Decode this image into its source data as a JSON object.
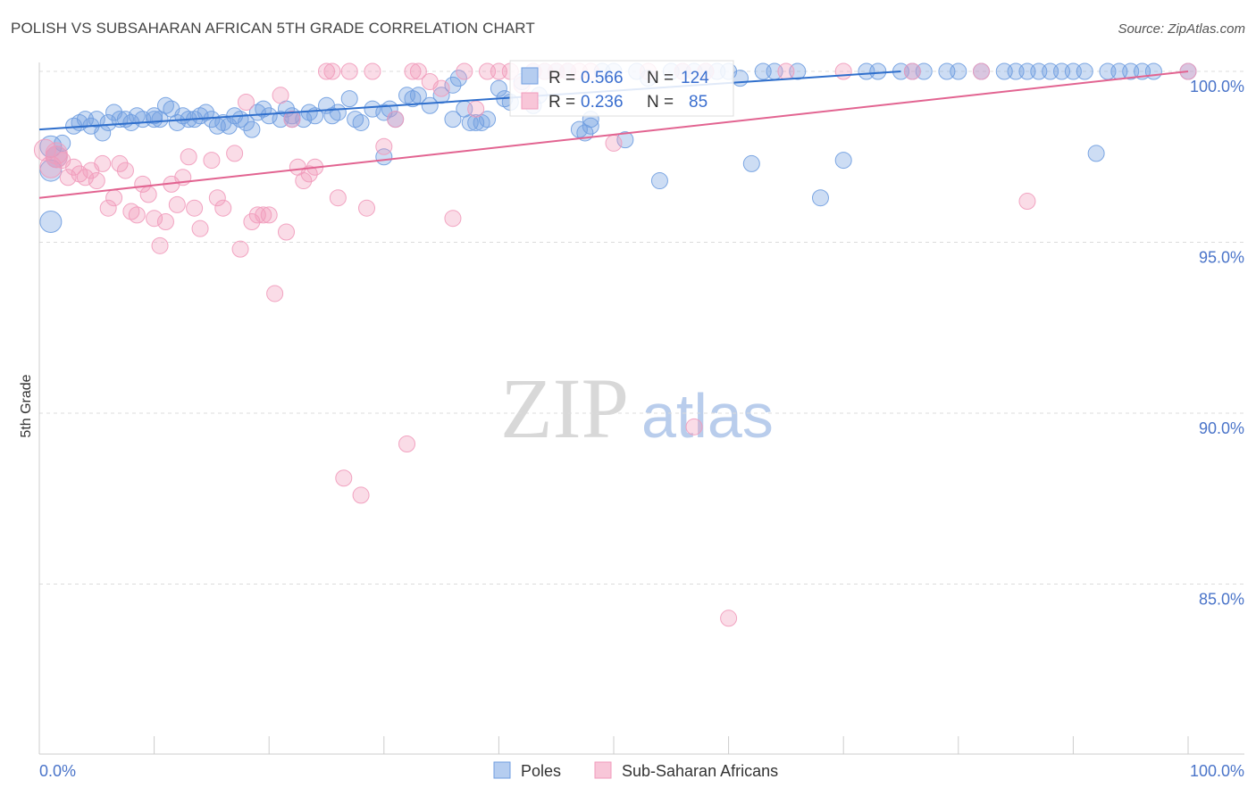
{
  "header": {
    "title": "POLISH VS SUBSAHARAN AFRICAN 5TH GRADE CORRELATION CHART",
    "source": "Source: ZipAtlas.com"
  },
  "watermark": {
    "zip": "ZIP",
    "atlas": "atlas"
  },
  "chart_data": {
    "type": "scatter",
    "title": "POLISH VS SUBSAHARAN AFRICAN 5TH GRADE CORRELATION CHART",
    "xlabel": "",
    "ylabel": "5th Grade",
    "xlim": [
      0,
      100
    ],
    "ylim": [
      80.5,
      100.8
    ],
    "x_tick_labels": [
      "0.0%",
      "100.0%"
    ],
    "y_ticks": [
      100,
      95,
      90,
      85
    ],
    "y_tick_labels": [
      "100.0%",
      "95.0%",
      "90.0%",
      "85.0%"
    ],
    "grid": true,
    "legend_position": "bottom",
    "series": [
      {
        "name": "Poles",
        "color": "#6f9de0",
        "line_color": "#2f6fcc",
        "R": "0.566",
        "N": "124",
        "trend": [
          [
            0,
            98.3
          ],
          [
            75,
            100.0
          ]
        ],
        "points": [
          [
            1,
            97.8
          ],
          [
            1.5,
            97.5
          ],
          [
            2,
            97.9
          ],
          [
            3,
            98.4
          ],
          [
            3.5,
            98.5
          ],
          [
            4,
            98.6
          ],
          [
            4.5,
            98.4
          ],
          [
            5,
            98.6
          ],
          [
            5.5,
            98.2
          ],
          [
            6,
            98.5
          ],
          [
            6.5,
            98.8
          ],
          [
            7,
            98.6
          ],
          [
            7.5,
            98.6
          ],
          [
            8,
            98.5
          ],
          [
            8.5,
            98.7
          ],
          [
            9,
            98.6
          ],
          [
            10,
            98.7
          ],
          [
            10.5,
            98.6
          ],
          [
            11,
            99.0
          ],
          [
            11.5,
            98.9
          ],
          [
            12,
            98.5
          ],
          [
            12.5,
            98.7
          ],
          [
            13,
            98.6
          ],
          [
            13.5,
            98.6
          ],
          [
            14,
            98.7
          ],
          [
            14.5,
            98.8
          ],
          [
            15,
            98.6
          ],
          [
            15.5,
            98.4
          ],
          [
            16,
            98.5
          ],
          [
            16.5,
            98.4
          ],
          [
            17,
            98.7
          ],
          [
            17.5,
            98.6
          ],
          [
            18,
            98.5
          ],
          [
            18.5,
            98.3
          ],
          [
            19,
            98.8
          ],
          [
            19.5,
            98.9
          ],
          [
            20,
            98.7
          ],
          [
            21,
            98.6
          ],
          [
            21.5,
            98.9
          ],
          [
            22,
            98.7
          ],
          [
            23,
            98.6
          ],
          [
            23.5,
            98.8
          ],
          [
            24,
            98.7
          ],
          [
            25,
            99.0
          ],
          [
            25.5,
            98.7
          ],
          [
            26,
            98.8
          ],
          [
            27,
            99.2
          ],
          [
            27.5,
            98.6
          ],
          [
            28,
            98.5
          ],
          [
            29,
            98.9
          ],
          [
            30,
            98.8
          ],
          [
            30.5,
            98.9
          ],
          [
            31,
            98.6
          ],
          [
            32,
            99.3
          ],
          [
            32.5,
            99.2
          ],
          [
            33,
            99.3
          ],
          [
            34,
            99.0
          ],
          [
            35,
            99.3
          ],
          [
            36,
            98.6
          ],
          [
            36.5,
            99.8
          ],
          [
            37,
            98.9
          ],
          [
            38,
            98.5
          ],
          [
            38.5,
            98.5
          ],
          [
            39,
            98.6
          ],
          [
            40,
            99.5
          ],
          [
            40.5,
            99.2
          ],
          [
            41,
            99.1
          ],
          [
            42,
            99.7
          ],
          [
            43,
            100.0
          ],
          [
            43.5,
            99.3
          ],
          [
            44,
            100.0
          ],
          [
            45,
            100.0
          ],
          [
            46,
            100.0
          ],
          [
            47,
            98.3
          ],
          [
            47.5,
            98.2
          ],
          [
            48,
            98.4
          ],
          [
            49,
            100.0
          ],
          [
            50,
            100.0
          ],
          [
            51,
            98.0
          ],
          [
            52,
            100.0
          ],
          [
            53,
            99.8
          ],
          [
            54,
            96.8
          ],
          [
            55,
            100.0
          ],
          [
            57,
            100.0
          ],
          [
            58,
            100.0
          ],
          [
            60,
            100.0
          ],
          [
            62,
            97.3
          ],
          [
            63,
            100.0
          ],
          [
            66,
            100.0
          ],
          [
            68,
            96.3
          ],
          [
            70,
            97.4
          ],
          [
            72,
            100.0
          ],
          [
            75,
            100.0
          ],
          [
            77,
            100.0
          ],
          [
            79,
            100.0
          ],
          [
            80,
            100.0
          ],
          [
            82,
            100.0
          ],
          [
            84,
            100.0
          ],
          [
            86,
            100.0
          ],
          [
            88,
            100.0
          ],
          [
            90,
            100.0
          ],
          [
            94,
            100.0
          ],
          [
            95,
            100.0
          ],
          [
            100,
            100.0
          ],
          [
            92,
            97.6
          ],
          [
            1,
            95.6
          ],
          [
            1,
            97.1
          ],
          [
            30,
            97.5
          ],
          [
            10,
            98.6
          ],
          [
            22,
            98.6
          ],
          [
            36,
            99.6
          ],
          [
            37.5,
            98.5
          ],
          [
            43,
            99.0
          ],
          [
            48,
            98.6
          ],
          [
            56,
            100.0
          ],
          [
            59,
            100.0
          ],
          [
            61,
            99.8
          ],
          [
            64,
            100.0
          ],
          [
            73,
            100.0
          ],
          [
            76,
            100.0
          ],
          [
            85,
            100.0
          ],
          [
            87,
            100.0
          ],
          [
            89,
            100.0
          ],
          [
            91,
            100.0
          ],
          [
            93,
            100.0
          ],
          [
            96,
            100.0
          ],
          [
            97,
            100.0
          ]
        ]
      },
      {
        "name": "Sub-Saharan Africans",
        "color": "#f19bbb",
        "line_color": "#e26491",
        "R": "0.236",
        "N": "85",
        "trend": [
          [
            0,
            96.3
          ],
          [
            100,
            100.0
          ]
        ],
        "points": [
          [
            0.5,
            97.7
          ],
          [
            1,
            97.2
          ],
          [
            1.5,
            97.6
          ],
          [
            2,
            97.4
          ],
          [
            2.5,
            96.9
          ],
          [
            3,
            97.2
          ],
          [
            3.5,
            97.0
          ],
          [
            4,
            96.9
          ],
          [
            4.5,
            97.1
          ],
          [
            5,
            96.8
          ],
          [
            5.5,
            97.3
          ],
          [
            6,
            96.0
          ],
          [
            6.5,
            96.3
          ],
          [
            7,
            97.3
          ],
          [
            7.5,
            97.1
          ],
          [
            8,
            95.9
          ],
          [
            8.5,
            95.8
          ],
          [
            9,
            96.7
          ],
          [
            9.5,
            96.4
          ],
          [
            10,
            95.7
          ],
          [
            10.5,
            94.9
          ],
          [
            11,
            95.6
          ],
          [
            11.5,
            96.7
          ],
          [
            12,
            96.1
          ],
          [
            12.5,
            96.9
          ],
          [
            13,
            97.5
          ],
          [
            13.5,
            96.0
          ],
          [
            14,
            95.4
          ],
          [
            15,
            97.4
          ],
          [
            15.5,
            96.3
          ],
          [
            16,
            96.0
          ],
          [
            17,
            97.6
          ],
          [
            17.5,
            94.8
          ],
          [
            18,
            99.1
          ],
          [
            18.5,
            95.6
          ],
          [
            19,
            95.8
          ],
          [
            19.5,
            95.8
          ],
          [
            20,
            95.8
          ],
          [
            20.5,
            93.5
          ],
          [
            21,
            99.3
          ],
          [
            21.5,
            95.3
          ],
          [
            22,
            98.6
          ],
          [
            22.5,
            97.2
          ],
          [
            23,
            96.8
          ],
          [
            23.5,
            97.0
          ],
          [
            24,
            97.2
          ],
          [
            25,
            100.0
          ],
          [
            25.5,
            100.0
          ],
          [
            26,
            96.3
          ],
          [
            26.5,
            88.1
          ],
          [
            27,
            100.0
          ],
          [
            28,
            87.6
          ],
          [
            28.5,
            96.0
          ],
          [
            29,
            100.0
          ],
          [
            30,
            97.8
          ],
          [
            31,
            98.6
          ],
          [
            32,
            89.1
          ],
          [
            32.5,
            100.0
          ],
          [
            33,
            100.0
          ],
          [
            34,
            99.7
          ],
          [
            35,
            99.5
          ],
          [
            36,
            95.7
          ],
          [
            37,
            100.0
          ],
          [
            38,
            98.9
          ],
          [
            39,
            100.0
          ],
          [
            40,
            100.0
          ],
          [
            41,
            100.0
          ],
          [
            42,
            99.6
          ],
          [
            43,
            100.0
          ],
          [
            44,
            100.0
          ],
          [
            45,
            100.0
          ],
          [
            46,
            100.0
          ],
          [
            47,
            100.0
          ],
          [
            48,
            100.0
          ],
          [
            50,
            97.9
          ],
          [
            53,
            100.0
          ],
          [
            56,
            100.0
          ],
          [
            57,
            89.6
          ],
          [
            58,
            100.0
          ],
          [
            60,
            84.0
          ],
          [
            65,
            100.0
          ],
          [
            70,
            100.0
          ],
          [
            76,
            100.0
          ],
          [
            82,
            100.0
          ],
          [
            86,
            96.2
          ],
          [
            100,
            100.0
          ],
          [
            1.5,
            97.5
          ]
        ]
      }
    ]
  }
}
